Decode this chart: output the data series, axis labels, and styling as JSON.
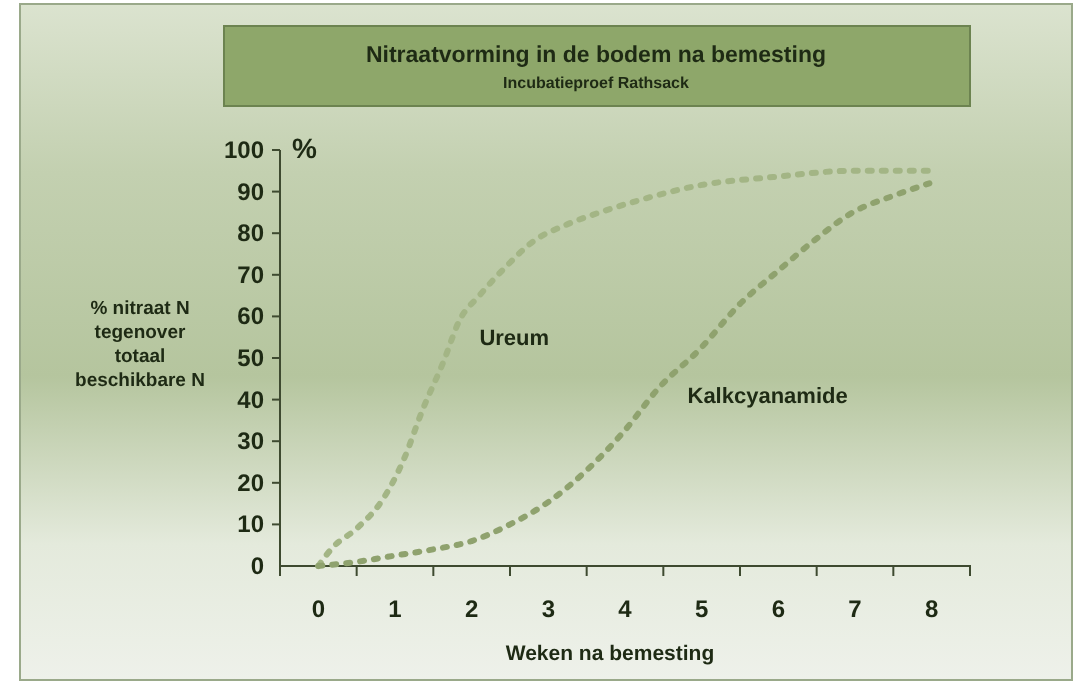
{
  "chart_data": {
    "type": "line",
    "title": "Nitraatvorming in de bodem na bemesting",
    "subtitle": "Incubatieproef Rathsack",
    "xlabel": "Weken na bemesting",
    "ylabel": "% nitraat N tegenover totaal beschikbare N",
    "annotations": [
      "%"
    ],
    "xlim": [
      -0.5,
      8.5
    ],
    "xticks": [
      {
        "value": -0.5,
        "label": null
      },
      0,
      {
        "value": 0.5,
        "label": null
      },
      1,
      {
        "value": 1.5,
        "label": null
      },
      2,
      {
        "value": 2.5,
        "label": null
      },
      3,
      {
        "value": 3.5,
        "label": null
      },
      4,
      {
        "value": 4.5,
        "label": null
      },
      5,
      {
        "value": 5.5,
        "label": null
      },
      6,
      {
        "value": 6.5,
        "label": null
      },
      7,
      {
        "value": 7.5,
        "label": null
      },
      8,
      {
        "value": 8.5,
        "label": null
      }
    ],
    "ylim": [
      0,
      100
    ],
    "yticks": [
      0,
      10,
      20,
      30,
      40,
      50,
      60,
      70,
      80,
      90,
      100
    ],
    "grid": false,
    "legend": false,
    "line_style": "dotted",
    "marker": "none",
    "series": [
      {
        "name": "Ureum",
        "color": "#a3b585",
        "x": [
          0,
          0.19,
          0.5,
          0.84,
          1.1,
          1.37,
          1.63,
          1.84,
          2.1,
          2.45,
          2.8,
          3.23,
          3.67,
          4.2,
          4.97,
          5.93,
          6.97,
          7.97
        ],
        "values": [
          0,
          4.5,
          9,
          16,
          25,
          38,
          49,
          59,
          65,
          72,
          78,
          82,
          85,
          88,
          91.5,
          93.5,
          95,
          95
        ]
      },
      {
        "name": "Kalkcyanamide",
        "color": "#8fa26e",
        "x": [
          0,
          0.5,
          1,
          1.5,
          2,
          2.5,
          2.97,
          3.5,
          3.97,
          4.45,
          4.97,
          5.5,
          6,
          6.45,
          6.97,
          7.5,
          7.97
        ],
        "values": [
          0,
          1,
          2.5,
          4,
          6,
          10,
          15,
          23,
          32,
          43,
          52,
          63,
          71,
          78,
          85,
          89,
          92
        ]
      }
    ]
  }
}
